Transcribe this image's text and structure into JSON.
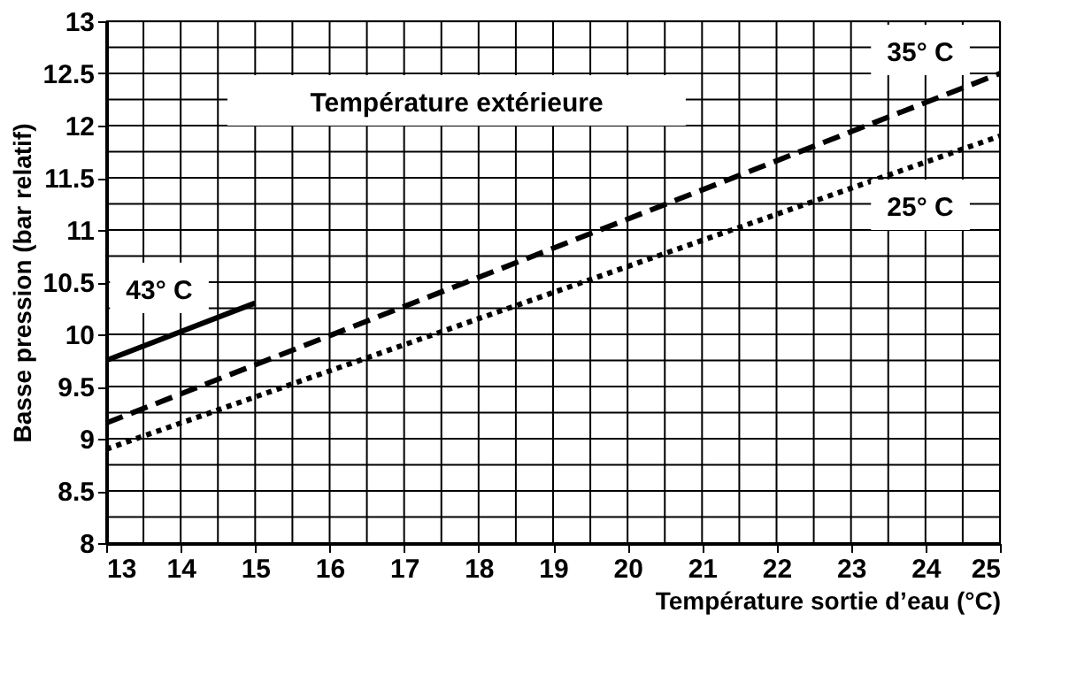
{
  "chart_data": {
    "type": "line",
    "xlabel": "Température sortie d’eau (°C)",
    "ylabel": "Basse pression  (bar relatif)",
    "legend_title": "Température extérieure",
    "xlim": [
      13,
      25
    ],
    "ylim": [
      8,
      13
    ],
    "xticks": [
      13,
      14,
      15,
      16,
      17,
      18,
      19,
      20,
      21,
      22,
      23,
      24,
      25
    ],
    "yticks": [
      8,
      8.5,
      9,
      9.5,
      10,
      10.5,
      11,
      11.5,
      12,
      12.5,
      13
    ],
    "grid": true,
    "legend": false,
    "marker": "none",
    "series": [
      {
        "name": "43° C",
        "color": "#000000",
        "line_style": "solid",
        "x": [
          13,
          15
        ],
        "values": [
          9.75,
          10.3
        ]
      },
      {
        "name": "35° C",
        "color": "#000000",
        "line_style": "dashed",
        "x": [
          13,
          25
        ],
        "values": [
          9.15,
          12.5
        ]
      },
      {
        "name": "25° C",
        "color": "#000000",
        "line_style": "dotted",
        "x": [
          13,
          25
        ],
        "values": [
          8.9,
          11.9
        ]
      }
    ]
  }
}
